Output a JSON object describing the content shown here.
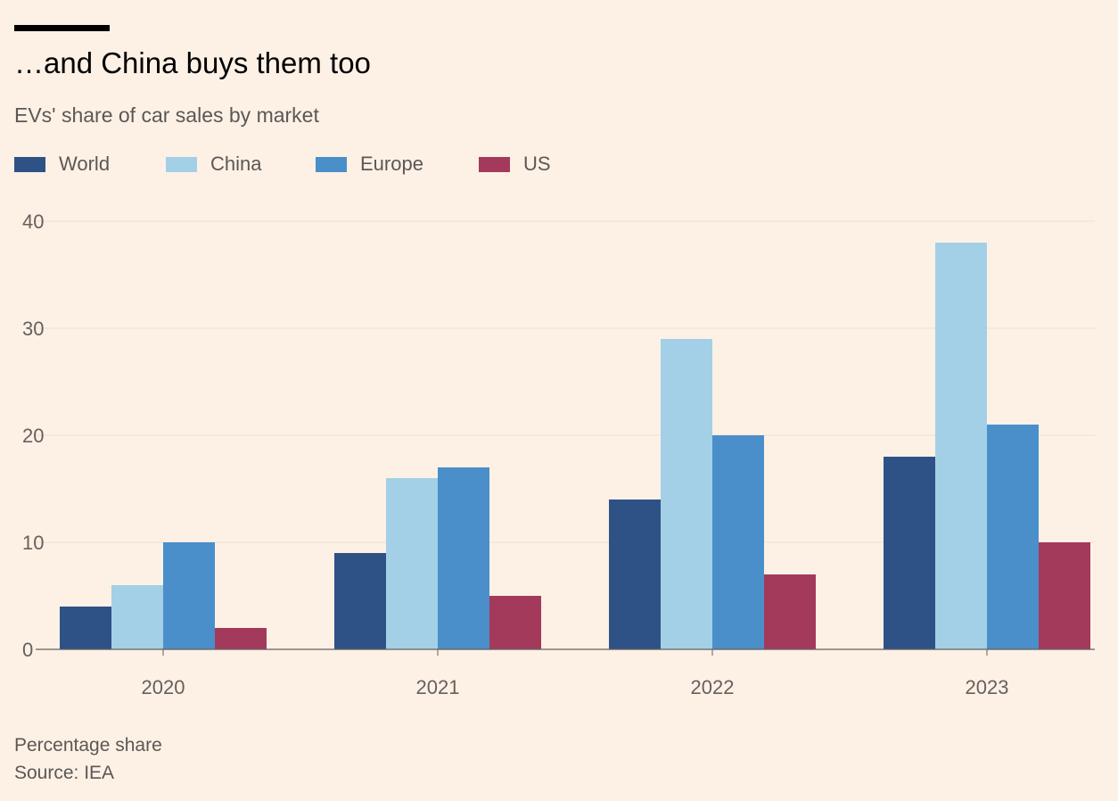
{
  "header": {
    "title": "…and China buys them too",
    "subtitle": "EVs' share of car sales by market"
  },
  "footer": {
    "note": "Percentage share",
    "source": "Source: IEA"
  },
  "chart_data": {
    "type": "bar",
    "title": "…and China buys them too",
    "subtitle": "EVs' share of car sales by market",
    "xlabel": "",
    "ylabel": "",
    "categories": [
      "2020",
      "2021",
      "2022",
      "2023"
    ],
    "series": [
      {
        "name": "World",
        "color": "#2e5286",
        "values": [
          4,
          9,
          14,
          18
        ]
      },
      {
        "name": "China",
        "color": "#a3d0e6",
        "values": [
          6,
          16,
          29,
          38
        ]
      },
      {
        "name": "Europe",
        "color": "#4a8fca",
        "values": [
          10,
          17,
          20,
          21
        ]
      },
      {
        "name": "US",
        "color": "#a33a5c",
        "values": [
          2,
          5,
          7,
          10
        ]
      }
    ],
    "ylim": [
      0,
      40
    ],
    "yticks": [
      "0",
      "10",
      "20",
      "30",
      "40"
    ],
    "grid": true,
    "legend_position": "top-left"
  }
}
